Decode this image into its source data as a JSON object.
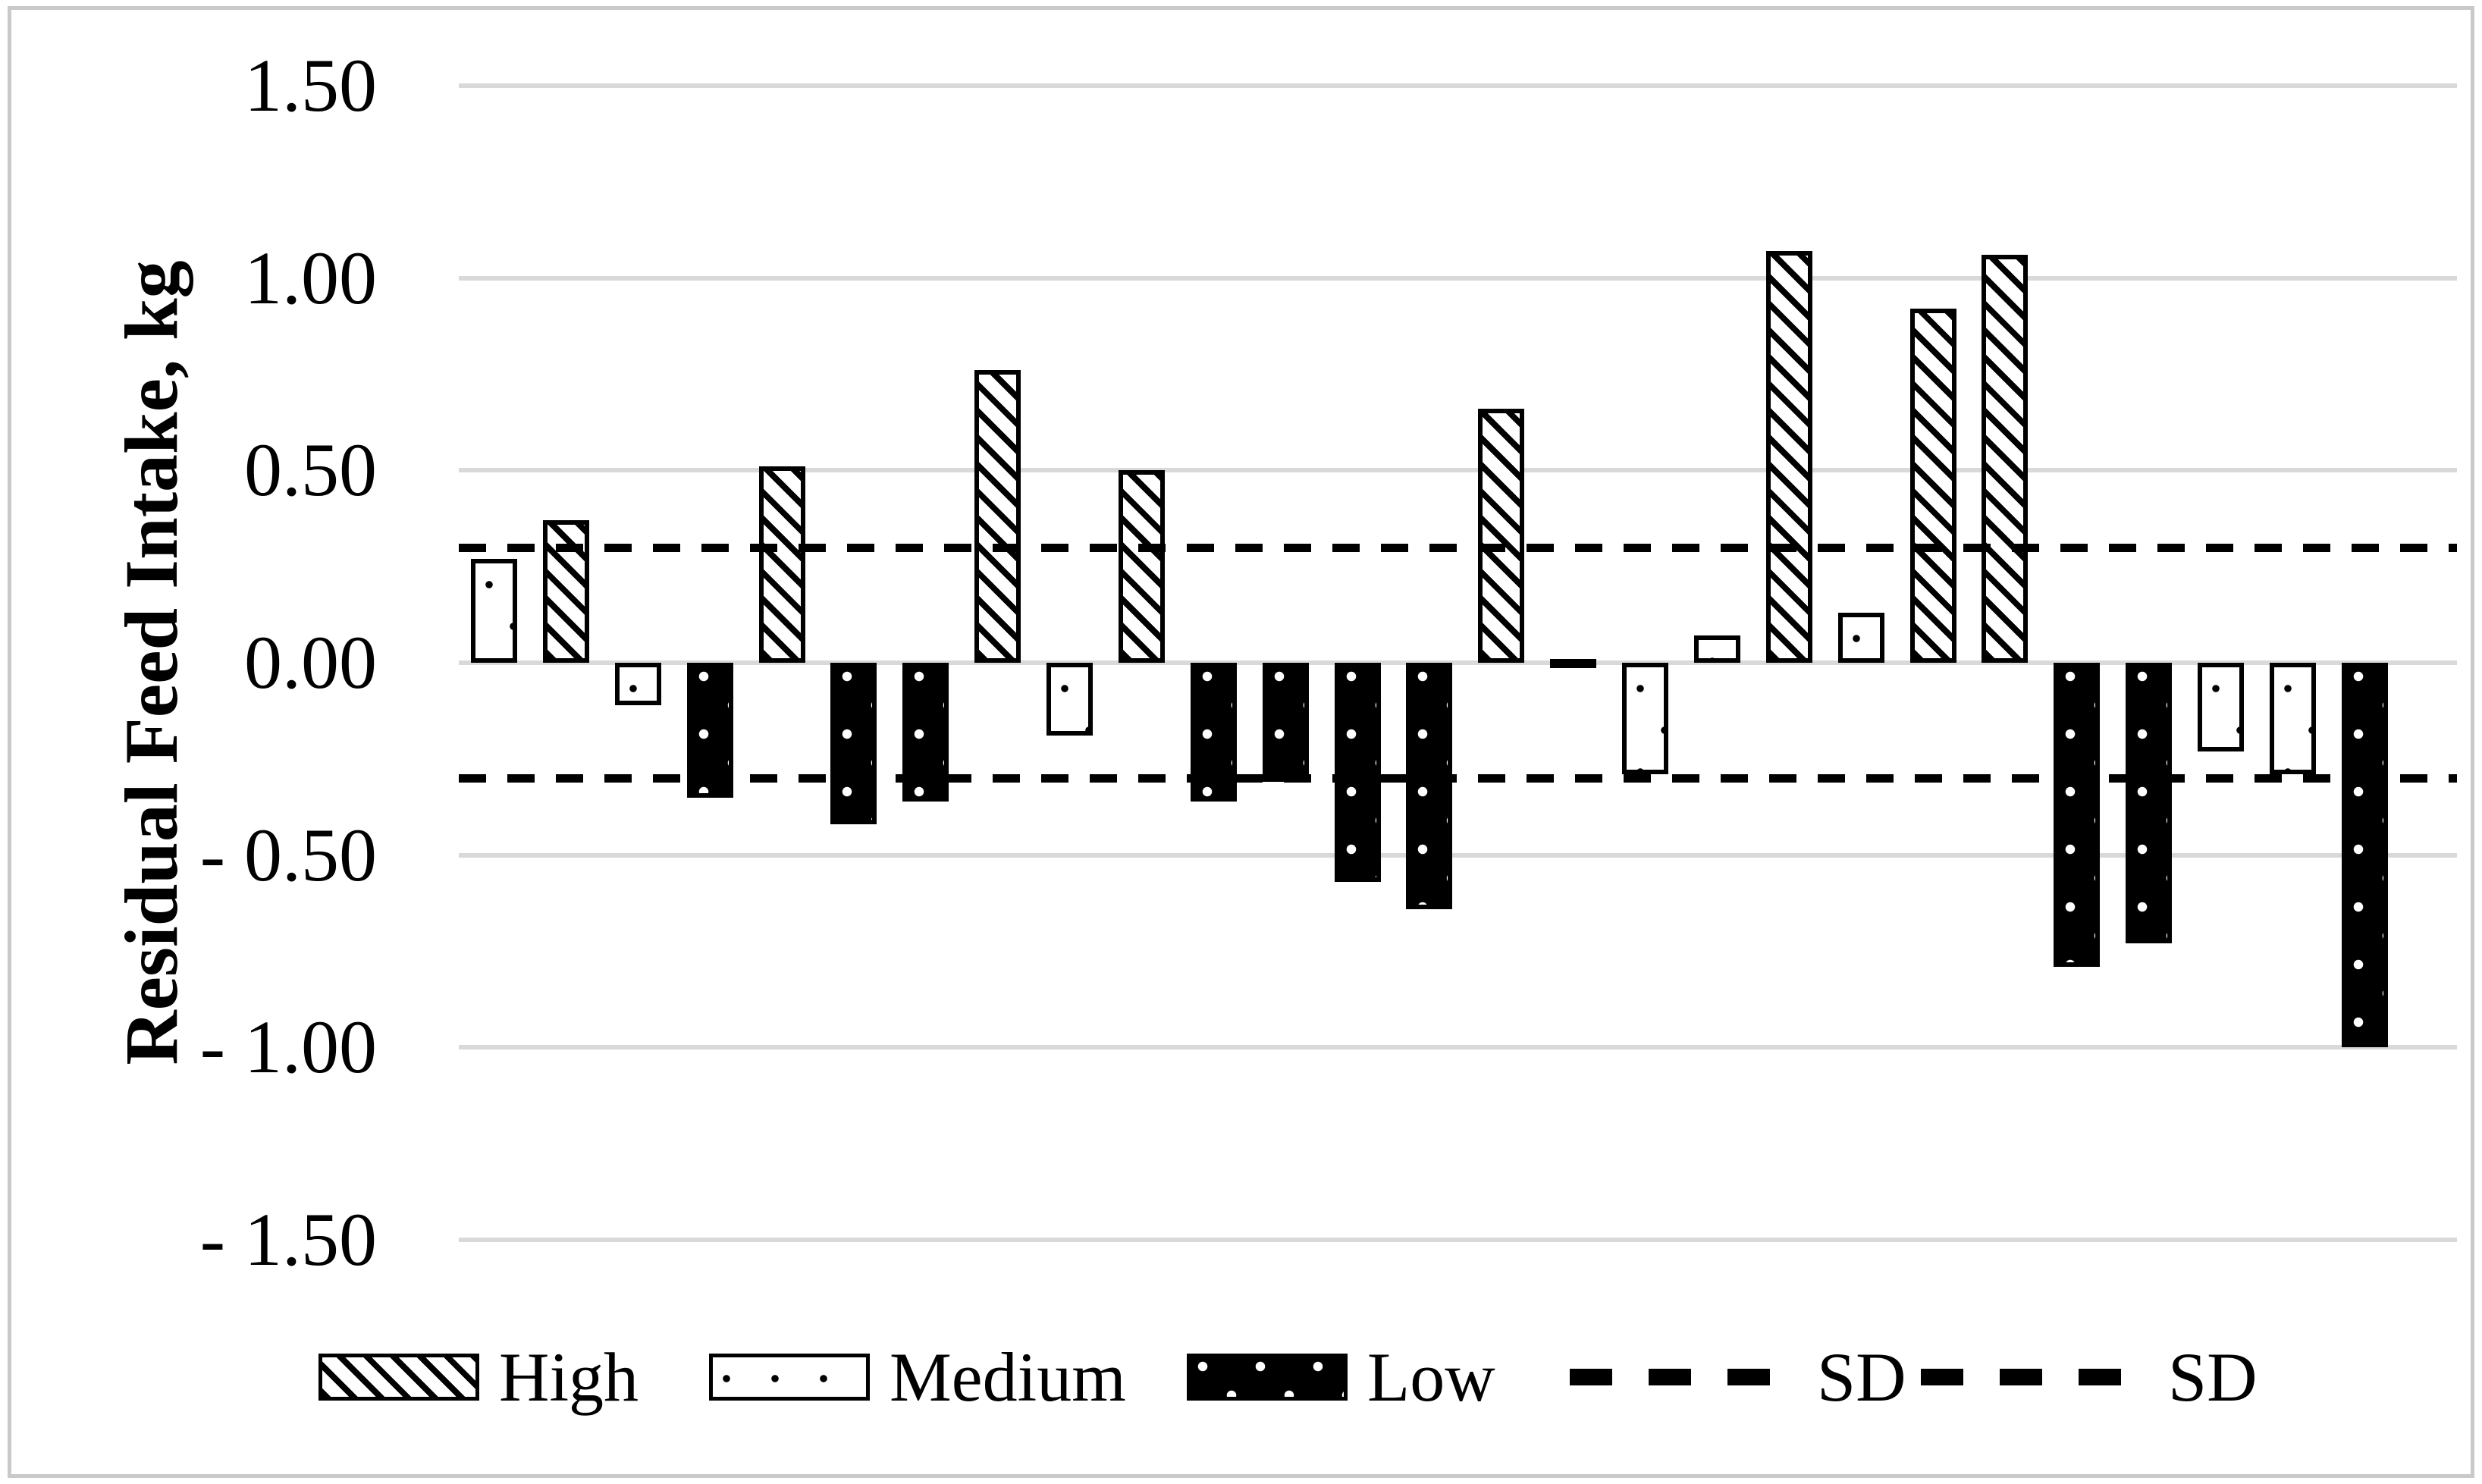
{
  "figure": {
    "background_color": "#ffffff",
    "frame_color": "#c9c9c9",
    "gridline_color": "#d9d9d9",
    "ink_color": "#000000"
  },
  "y_axis": {
    "title": "Residual Feed Intake, kg",
    "tick_labels": [
      "1.50",
      "1.00",
      "0.50",
      "0.00",
      "- 0.50",
      "- 1.00",
      "- 1.50"
    ],
    "tick_values": [
      1.5,
      1.0,
      0.5,
      0.0,
      -0.5,
      -1.0,
      -1.5
    ]
  },
  "legend": [
    {
      "label": "High",
      "style": "high"
    },
    {
      "label": "Medium",
      "style": "medium"
    },
    {
      "label": "Low",
      "style": "low"
    },
    {
      "label": "SD",
      "style": "dash"
    },
    {
      "label": "SD",
      "style": "dash"
    }
  ],
  "chart_data": {
    "type": "bar",
    "title": "",
    "xlabel": "",
    "ylabel": "Residual Feed Intake, kg",
    "ylim": [
      -1.5,
      1.5
    ],
    "ytick_step": 0.5,
    "grid": "horizontal",
    "legend_position": "bottom",
    "x_axis_labels": "none",
    "sd_lines": {
      "label": "SD",
      "values": [
        0.3,
        -0.3
      ]
    },
    "series_styles": {
      "High": "diagonal-hatch",
      "Medium": "white-with-sparse-black-dots",
      "Low": "black-with-sparse-white-dots"
    },
    "bars": [
      {
        "series": "Medium",
        "value": 0.27
      },
      {
        "series": "High",
        "value": 0.37
      },
      {
        "series": "Medium",
        "value": -0.11
      },
      {
        "series": "Low",
        "value": -0.35
      },
      {
        "series": "High",
        "value": 0.51
      },
      {
        "series": "Low",
        "value": -0.42
      },
      {
        "series": "Low",
        "value": -0.36
      },
      {
        "series": "High",
        "value": 0.76
      },
      {
        "series": "Medium",
        "value": -0.19
      },
      {
        "series": "High",
        "value": 0.5
      },
      {
        "series": "Low",
        "value": -0.36
      },
      {
        "series": "Low",
        "value": -0.31
      },
      {
        "series": "Low",
        "value": -0.57
      },
      {
        "series": "Low",
        "value": -0.64
      },
      {
        "series": "High",
        "value": 0.66
      },
      {
        "series": "Medium",
        "value": 0.01
      },
      {
        "series": "Medium",
        "value": -0.29
      },
      {
        "series": "Medium",
        "value": 0.07
      },
      {
        "series": "High",
        "value": 1.07
      },
      {
        "series": "Medium",
        "value": 0.13
      },
      {
        "series": "High",
        "value": 0.92
      },
      {
        "series": "High",
        "value": 1.06
      },
      {
        "series": "Low",
        "value": -0.79
      },
      {
        "series": "Low",
        "value": -0.73
      },
      {
        "series": "Medium",
        "value": -0.23
      },
      {
        "series": "Medium",
        "value": -0.29
      },
      {
        "series": "Low",
        "value": -1.0
      }
    ]
  }
}
